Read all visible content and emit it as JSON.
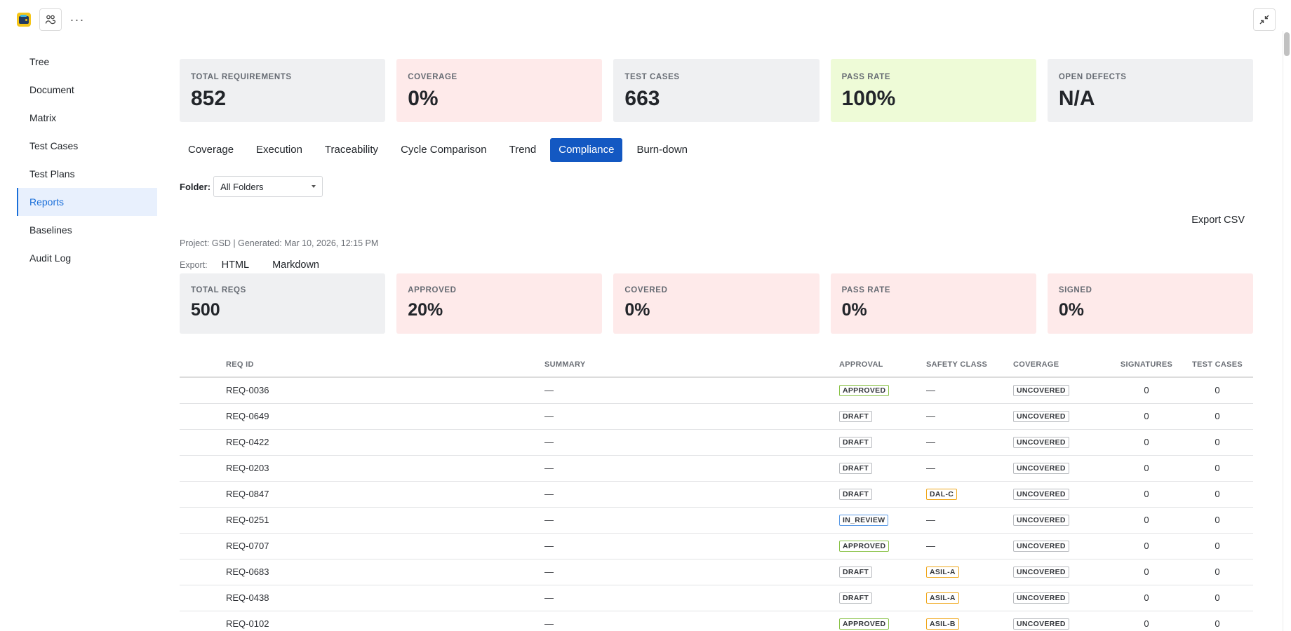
{
  "topbar": {
    "logo_icon": "wallet-app-icon",
    "users_icon": "users-icon",
    "more_icon": "more-horizontal-icon",
    "collapse_icon": "collapse-arrows-icon",
    "more_label": "···"
  },
  "sidebar": {
    "items": [
      {
        "label": "Tree",
        "active": false
      },
      {
        "label": "Document",
        "active": false
      },
      {
        "label": "Matrix",
        "active": false
      },
      {
        "label": "Test Cases",
        "active": false
      },
      {
        "label": "Test Plans",
        "active": false
      },
      {
        "label": "Reports",
        "active": true
      },
      {
        "label": "Baselines",
        "active": false
      },
      {
        "label": "Audit Log",
        "active": false
      }
    ]
  },
  "summary_stats": [
    {
      "label": "TOTAL REQUIREMENTS",
      "value": "852",
      "tone": "gray"
    },
    {
      "label": "COVERAGE",
      "value": "0%",
      "tone": "red"
    },
    {
      "label": "TEST CASES",
      "value": "663",
      "tone": "gray"
    },
    {
      "label": "PASS RATE",
      "value": "100%",
      "tone": "green"
    },
    {
      "label": "OPEN DEFECTS",
      "value": "N/A",
      "tone": "gray"
    }
  ],
  "tabs": [
    {
      "label": "Coverage",
      "active": false
    },
    {
      "label": "Execution",
      "active": false
    },
    {
      "label": "Traceability",
      "active": false
    },
    {
      "label": "Cycle Comparison",
      "active": false
    },
    {
      "label": "Trend",
      "active": false
    },
    {
      "label": "Compliance",
      "active": true
    },
    {
      "label": "Burn-down",
      "active": false
    }
  ],
  "folder_filter": {
    "label": "Folder:",
    "selected": "All Folders"
  },
  "compliance": {
    "export_csv_label": "Export CSV",
    "meta": "Project: GSD | Generated: Mar 10, 2026, 12:15 PM",
    "export_label": "Export:",
    "export_links": [
      "HTML",
      "Markdown"
    ],
    "stats": [
      {
        "label": "TOTAL REQS",
        "value": "500",
        "tone": "gray"
      },
      {
        "label": "APPROVED",
        "value": "20%",
        "tone": "red"
      },
      {
        "label": "COVERED",
        "value": "0%",
        "tone": "red"
      },
      {
        "label": "PASS RATE",
        "value": "0%",
        "tone": "red"
      },
      {
        "label": "SIGNED",
        "value": "0%",
        "tone": "red"
      }
    ],
    "table": {
      "columns": [
        "REQ ID",
        "SUMMARY",
        "APPROVAL",
        "SAFETY CLASS",
        "COVERAGE",
        "SIGNATURES",
        "TEST CASES"
      ],
      "rows": [
        {
          "id": "REQ-0036",
          "summary": "—",
          "approval": "APPROVED",
          "safety": "—",
          "coverage": "UNCOVERED",
          "signatures": "0",
          "test_cases": "0"
        },
        {
          "id": "REQ-0649",
          "summary": "—",
          "approval": "DRAFT",
          "safety": "—",
          "coverage": "UNCOVERED",
          "signatures": "0",
          "test_cases": "0"
        },
        {
          "id": "REQ-0422",
          "summary": "—",
          "approval": "DRAFT",
          "safety": "—",
          "coverage": "UNCOVERED",
          "signatures": "0",
          "test_cases": "0"
        },
        {
          "id": "REQ-0203",
          "summary": "—",
          "approval": "DRAFT",
          "safety": "—",
          "coverage": "UNCOVERED",
          "signatures": "0",
          "test_cases": "0"
        },
        {
          "id": "REQ-0847",
          "summary": "—",
          "approval": "DRAFT",
          "safety": "DAL-C",
          "coverage": "UNCOVERED",
          "signatures": "0",
          "test_cases": "0"
        },
        {
          "id": "REQ-0251",
          "summary": "—",
          "approval": "IN_REVIEW",
          "safety": "—",
          "coverage": "UNCOVERED",
          "signatures": "0",
          "test_cases": "0"
        },
        {
          "id": "REQ-0707",
          "summary": "—",
          "approval": "APPROVED",
          "safety": "—",
          "coverage": "UNCOVERED",
          "signatures": "0",
          "test_cases": "0"
        },
        {
          "id": "REQ-0683",
          "summary": "—",
          "approval": "DRAFT",
          "safety": "ASIL-A",
          "coverage": "UNCOVERED",
          "signatures": "0",
          "test_cases": "0"
        },
        {
          "id": "REQ-0438",
          "summary": "—",
          "approval": "DRAFT",
          "safety": "ASIL-A",
          "coverage": "UNCOVERED",
          "signatures": "0",
          "test_cases": "0"
        },
        {
          "id": "REQ-0102",
          "summary": "—",
          "approval": "APPROVED",
          "safety": "ASIL-B",
          "coverage": "UNCOVERED",
          "signatures": "0",
          "test_cases": "0"
        }
      ]
    }
  },
  "colors": {
    "accent": "#1358c2",
    "nav_active_bg": "#e8f0fd",
    "nav_active_text": "#1a6fd9",
    "stat_gray": "#eff0f2",
    "stat_red": "#feeaea",
    "stat_green": "#eefbd7",
    "badge_approved_border": "#8bc34a",
    "badge_review_border": "#5b9be6",
    "badge_safety_border": "#f0a81c"
  }
}
